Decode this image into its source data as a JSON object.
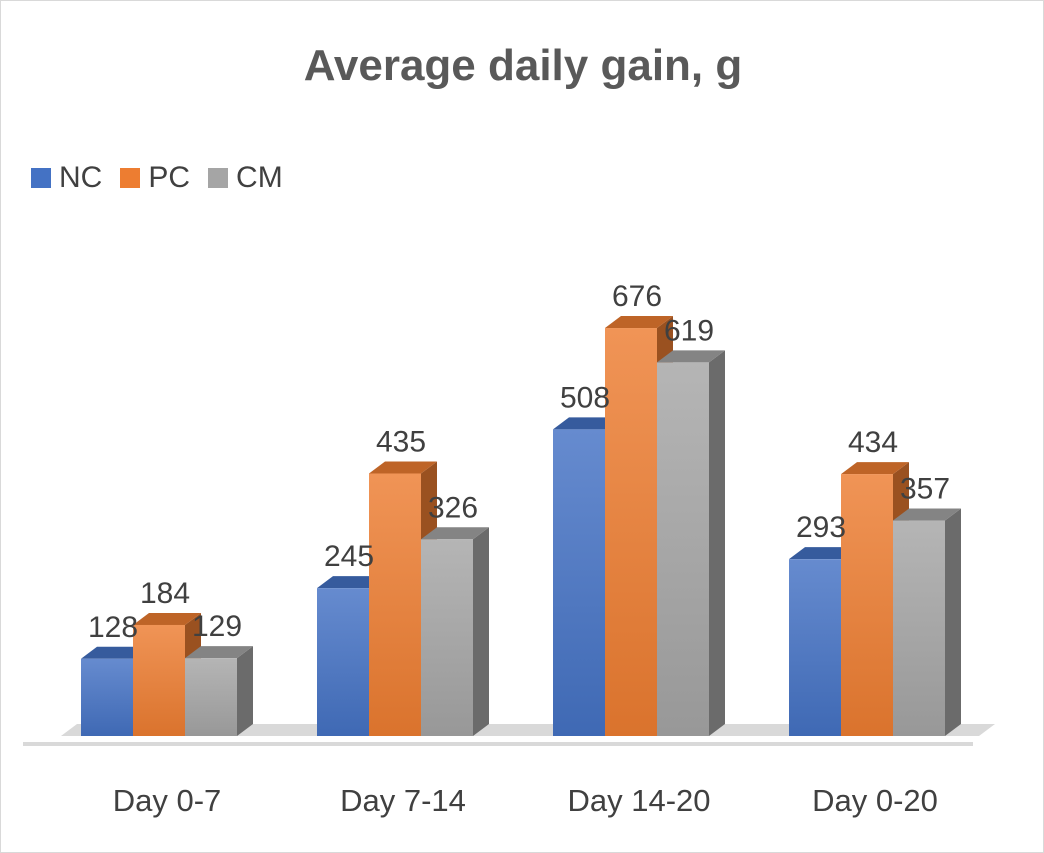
{
  "chart_data": {
    "type": "bar",
    "title": "Average daily gain, g",
    "categories": [
      "Day 0-7",
      "Day 7-14",
      "Day 14-20",
      "Day 0-20"
    ],
    "series": [
      {
        "name": "NC",
        "values": [
          128,
          245,
          508,
          293
        ],
        "color": "#4472c4"
      },
      {
        "name": "PC",
        "values": [
          184,
          435,
          676,
          434
        ],
        "color": "#ed7d31"
      },
      {
        "name": "CM",
        "values": [
          129,
          326,
          619,
          357
        ],
        "color": "#a5a5a5"
      }
    ],
    "xlabel": "",
    "ylabel": "",
    "ylim": [
      0,
      700
    ],
    "grid": false,
    "legend_position": "top-left",
    "style": "3d-clustered-column"
  }
}
